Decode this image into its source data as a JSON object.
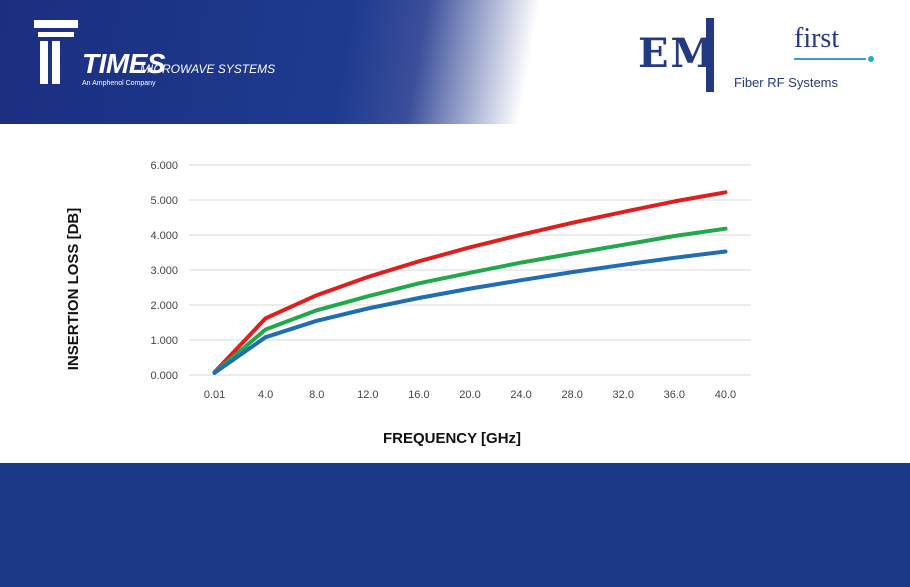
{
  "header": {
    "times_brand": "TIMES",
    "times_sub": "MICROWAVE SYSTEMS",
    "times_tag": "An Amphenol Company",
    "em_letters": "EM",
    "em_first": "first",
    "em_tagline": "Fiber RF Systems"
  },
  "colors": {
    "band": "#1d3787",
    "grid": "#d9d9d9",
    "red": "#e01e1e",
    "green": "#22a84a",
    "blue": "#1f6db3"
  },
  "chart_data": {
    "type": "line",
    "title": "",
    "xlabel": "FREQUENCY [GHz]",
    "ylabel": "INSERTION LOSS [DB]",
    "categories": [
      "0.01",
      "4.0",
      "8.0",
      "12.0",
      "16.0",
      "20.0",
      "24.0",
      "28.0",
      "32.0",
      "36.0",
      "40.0"
    ],
    "y_ticks": [
      "0.000",
      "1.000",
      "2.000",
      "3.000",
      "4.000",
      "5.000",
      "6.000"
    ],
    "ylim": [
      0,
      6
    ],
    "grid": true,
    "legend": "none",
    "series": [
      {
        "color": "#e01e1e",
        "values": [
          0.08,
          1.62,
          2.28,
          2.8,
          3.25,
          3.65,
          4.01,
          4.35,
          4.66,
          4.96,
          5.22
        ]
      },
      {
        "color": "#22a84a",
        "values": [
          0.07,
          1.3,
          1.85,
          2.25,
          2.62,
          2.92,
          3.21,
          3.47,
          3.72,
          3.97,
          4.18
        ]
      },
      {
        "color": "#1f6db3",
        "values": [
          0.06,
          1.08,
          1.55,
          1.9,
          2.2,
          2.47,
          2.71,
          2.94,
          3.15,
          3.35,
          3.53
        ]
      }
    ]
  }
}
